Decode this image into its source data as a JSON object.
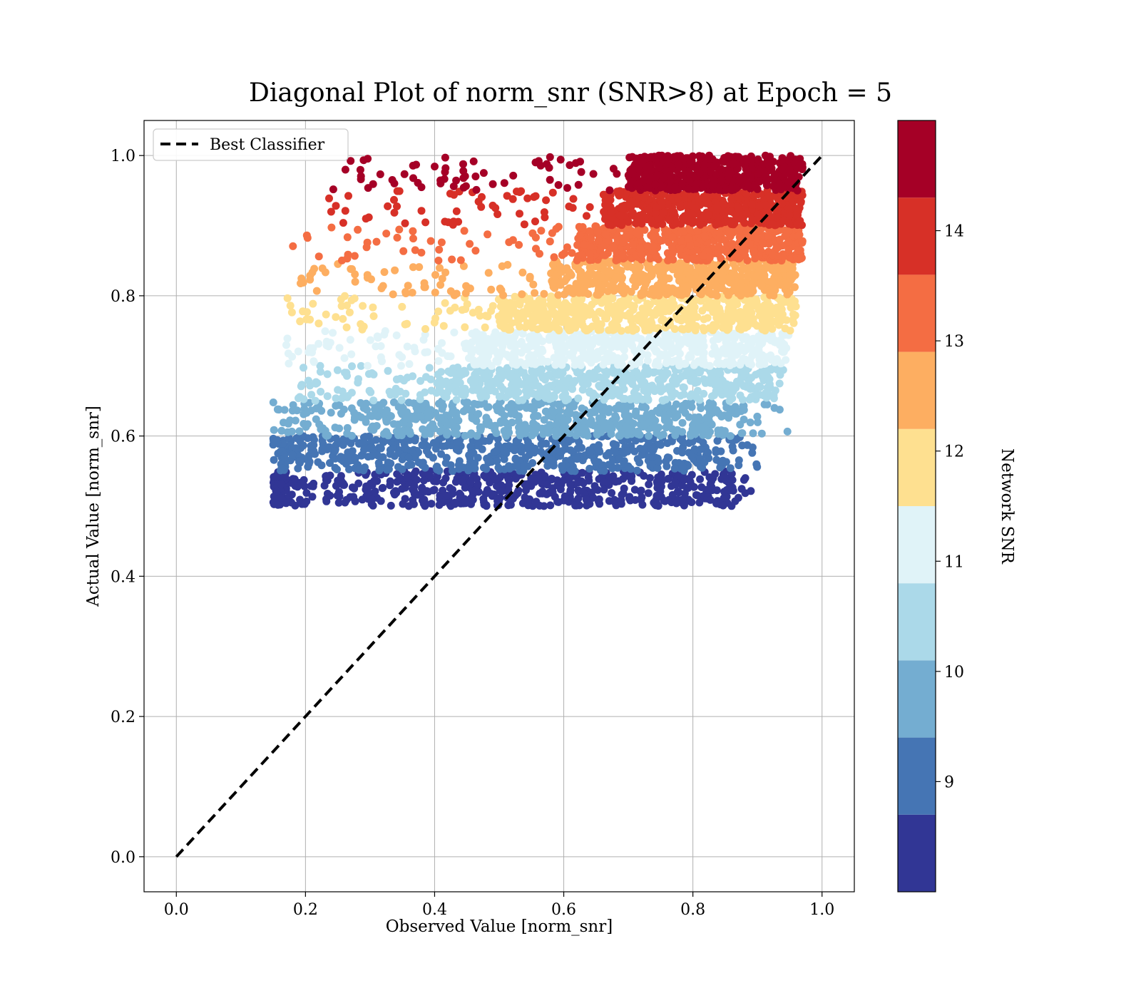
{
  "chart_data": {
    "type": "scatter",
    "title": "Diagonal Plot of norm_snr (SNR>8) at Epoch = 5",
    "xlabel": "Observed Value [norm_snr]",
    "ylabel": "Actual Value [norm_snr]",
    "xlim": [
      -0.05,
      1.05
    ],
    "ylim": [
      -0.05,
      1.05
    ],
    "xticks": [
      "0.0",
      "0.2",
      "0.4",
      "0.6",
      "0.8",
      "1.0"
    ],
    "yticks": [
      "0.0",
      "0.2",
      "0.4",
      "0.6",
      "0.8",
      "1.0"
    ],
    "grid": true,
    "legend": {
      "position": "top-left",
      "entries": [
        "Best Classifier"
      ]
    },
    "reference_line": {
      "name": "Best Classifier",
      "x": [
        0,
        1
      ],
      "y": [
        0,
        1
      ],
      "style": "dashed",
      "color": "#000000"
    },
    "colorbar": {
      "label": "Network SNR",
      "range": [
        8,
        15
      ],
      "tick_values": [
        9,
        10,
        11,
        12,
        13,
        14
      ],
      "tick_labels": [
        "9",
        "10",
        "11",
        "12",
        "13",
        "14"
      ],
      "colors": [
        "#313695",
        "#4575b4",
        "#74add1",
        "#abd9e9",
        "#e0f3f8",
        "#fee090",
        "#fdae61",
        "#f46d43",
        "#d73027",
        "#a50026"
      ]
    },
    "bands": [
      {
        "y_range": [
          0.5,
          0.55
        ],
        "x_core": [
          0.17,
          0.86
        ],
        "x_spread": [
          0.15,
          0.89
        ],
        "color": "#313695"
      },
      {
        "y_range": [
          0.55,
          0.6
        ],
        "x_core": [
          0.2,
          0.86
        ],
        "x_spread": [
          0.15,
          0.9
        ],
        "color": "#4575b4"
      },
      {
        "y_range": [
          0.6,
          0.65
        ],
        "x_core": [
          0.3,
          0.88
        ],
        "x_spread": [
          0.15,
          0.95
        ],
        "color": "#74add1"
      },
      {
        "y_range": [
          0.65,
          0.7
        ],
        "x_core": [
          0.4,
          0.92
        ],
        "x_spread": [
          0.17,
          0.94
        ],
        "color": "#abd9e9"
      },
      {
        "y_range": [
          0.7,
          0.75
        ],
        "x_core": [
          0.45,
          0.93
        ],
        "x_spread": [
          0.17,
          0.95
        ],
        "color": "#e0f3f8"
      },
      {
        "y_range": [
          0.75,
          0.8
        ],
        "x_core": [
          0.5,
          0.94
        ],
        "x_spread": [
          0.17,
          0.96
        ],
        "color": "#fee090"
      },
      {
        "y_range": [
          0.8,
          0.85
        ],
        "x_core": [
          0.58,
          0.95
        ],
        "x_spread": [
          0.18,
          0.96
        ],
        "color": "#fdae61"
      },
      {
        "y_range": [
          0.85,
          0.9
        ],
        "x_core": [
          0.62,
          0.96
        ],
        "x_spread": [
          0.18,
          0.97
        ],
        "color": "#f46d43"
      },
      {
        "y_range": [
          0.9,
          0.95
        ],
        "x_core": [
          0.66,
          0.96
        ],
        "x_spread": [
          0.22,
          0.97
        ],
        "color": "#d73027"
      },
      {
        "y_range": [
          0.95,
          1.0
        ],
        "x_core": [
          0.7,
          0.96
        ],
        "x_spread": [
          0.22,
          0.97
        ],
        "color": "#a50026"
      }
    ]
  }
}
